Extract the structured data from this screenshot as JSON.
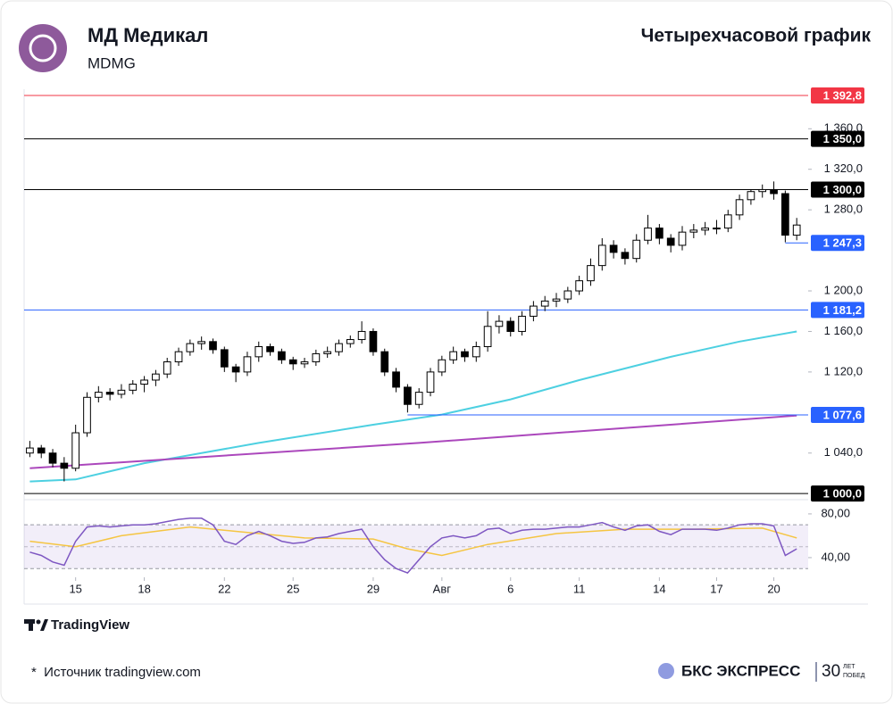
{
  "header": {
    "title": "МД Медикал",
    "ticker": "MDMG",
    "subtitle": "Четырехчасовой график"
  },
  "chart_data": {
    "type": "candlestick",
    "candles": [
      [
        1040,
        1052,
        1036,
        1045
      ],
      [
        1045,
        1048,
        1035,
        1040
      ],
      [
        1040,
        1044,
        1026,
        1030
      ],
      [
        1030,
        1036,
        1012,
        1025
      ],
      [
        1025,
        1068,
        1022,
        1060
      ],
      [
        1060,
        1100,
        1056,
        1095
      ],
      [
        1095,
        1106,
        1090,
        1100
      ],
      [
        1100,
        1104,
        1092,
        1098
      ],
      [
        1098,
        1108,
        1094,
        1102
      ],
      [
        1102,
        1112,
        1098,
        1108
      ],
      [
        1108,
        1116,
        1100,
        1112
      ],
      [
        1112,
        1122,
        1106,
        1118
      ],
      [
        1118,
        1134,
        1114,
        1130
      ],
      [
        1130,
        1144,
        1126,
        1140
      ],
      [
        1140,
        1152,
        1136,
        1148
      ],
      [
        1148,
        1155,
        1142,
        1150
      ],
      [
        1150,
        1153,
        1138,
        1142
      ],
      [
        1142,
        1145,
        1120,
        1125
      ],
      [
        1125,
        1128,
        1110,
        1120
      ],
      [
        1120,
        1140,
        1116,
        1135
      ],
      [
        1135,
        1150,
        1130,
        1145
      ],
      [
        1145,
        1148,
        1136,
        1140
      ],
      [
        1140,
        1143,
        1128,
        1132
      ],
      [
        1132,
        1135,
        1122,
        1128
      ],
      [
        1128,
        1134,
        1124,
        1130
      ],
      [
        1130,
        1142,
        1126,
        1138
      ],
      [
        1138,
        1145,
        1134,
        1140
      ],
      [
        1140,
        1152,
        1136,
        1148
      ],
      [
        1148,
        1156,
        1144,
        1152
      ],
      [
        1152,
        1170,
        1148,
        1160
      ],
      [
        1160,
        1163,
        1136,
        1140
      ],
      [
        1140,
        1143,
        1116,
        1120
      ],
      [
        1120,
        1124,
        1100,
        1105
      ],
      [
        1105,
        1108,
        1080,
        1088
      ],
      [
        1088,
        1104,
        1084,
        1100
      ],
      [
        1100,
        1124,
        1096,
        1120
      ],
      [
        1120,
        1136,
        1116,
        1132
      ],
      [
        1132,
        1145,
        1128,
        1140
      ],
      [
        1140,
        1143,
        1130,
        1135
      ],
      [
        1135,
        1150,
        1130,
        1145
      ],
      [
        1145,
        1180,
        1140,
        1165
      ],
      [
        1165,
        1176,
        1158,
        1170
      ],
      [
        1170,
        1174,
        1155,
        1160
      ],
      [
        1160,
        1180,
        1156,
        1175
      ],
      [
        1175,
        1190,
        1170,
        1185
      ],
      [
        1185,
        1195,
        1180,
        1190
      ],
      [
        1190,
        1198,
        1184,
        1192
      ],
      [
        1192,
        1204,
        1188,
        1200
      ],
      [
        1200,
        1215,
        1196,
        1210
      ],
      [
        1210,
        1232,
        1205,
        1225
      ],
      [
        1225,
        1252,
        1220,
        1245
      ],
      [
        1245,
        1250,
        1232,
        1238
      ],
      [
        1238,
        1242,
        1226,
        1232
      ],
      [
        1232,
        1256,
        1228,
        1250
      ],
      [
        1250,
        1275,
        1246,
        1262
      ],
      [
        1262,
        1266,
        1246,
        1252
      ],
      [
        1252,
        1256,
        1238,
        1245
      ],
      [
        1245,
        1264,
        1240,
        1258
      ],
      [
        1258,
        1266,
        1252,
        1260
      ],
      [
        1260,
        1268,
        1255,
        1262
      ],
      [
        1262,
        1270,
        1256,
        1262
      ],
      [
        1262,
        1280,
        1258,
        1275
      ],
      [
        1275,
        1295,
        1270,
        1290
      ],
      [
        1290,
        1300,
        1285,
        1298
      ],
      [
        1298,
        1305,
        1292,
        1300
      ],
      [
        1300,
        1308,
        1290,
        1296
      ],
      [
        1296,
        1299,
        1248,
        1255
      ],
      [
        1255,
        1272,
        1250,
        1265
      ]
    ],
    "up_color": "#ffffff",
    "down_color": "#000000",
    "xlim": [
      -0.5,
      68
    ],
    "xticks": [
      {
        "value": 4,
        "label": "15"
      },
      {
        "value": 10,
        "label": "18"
      },
      {
        "value": 17,
        "label": "22"
      },
      {
        "value": 23,
        "label": "25"
      },
      {
        "value": 30,
        "label": "29"
      },
      {
        "value": 36,
        "label": "Авг"
      },
      {
        "value": 42,
        "label": "6"
      },
      {
        "value": 48,
        "label": "11"
      },
      {
        "value": 55,
        "label": "14"
      },
      {
        "value": 60,
        "label": "17"
      },
      {
        "value": 65,
        "label": "20"
      }
    ],
    "ylim": [
      994,
      1399
    ],
    "yticks": [
      {
        "value": 1040,
        "label": "1 040,0"
      },
      {
        "value": 1120,
        "label": "1 120,0"
      },
      {
        "value": 1160,
        "label": "1 160,0"
      },
      {
        "value": 1200,
        "label": "1 200,0"
      },
      {
        "value": 1280,
        "label": "1 280,0"
      },
      {
        "value": 1320,
        "label": "1 320,0"
      },
      {
        "value": 1360,
        "label": "1 360,0"
      }
    ],
    "levels": [
      {
        "value": 1392.8,
        "label": "1 392,8",
        "color": "#f23645"
      },
      {
        "value": 1350.0,
        "label": "1 350,0",
        "color": "#000000"
      },
      {
        "value": 1300.0,
        "label": "1 300,0",
        "color": "#000000"
      },
      {
        "value": 1247.3,
        "label": "1 247,3",
        "color": "#2962ff",
        "start": 66
      },
      {
        "value": 1181.2,
        "label": "1 181,2",
        "color": "#2962ff"
      },
      {
        "value": 1077.6,
        "label": "1 077,6",
        "color": "#2962ff",
        "start": 33
      },
      {
        "value": 1000.0,
        "label": "1 000,0",
        "color": "#000000"
      }
    ],
    "moving_averages": [
      {
        "color": "#4dd0e1",
        "x": [
          0,
          4,
          10,
          20,
          30,
          36,
          42,
          48,
          56,
          62,
          67
        ],
        "values": [
          1012,
          1014,
          1030,
          1050,
          1068,
          1078,
          1093,
          1112,
          1135,
          1150,
          1160
        ]
      },
      {
        "color": "#ab47bc",
        "x": [
          0,
          34,
          67
        ],
        "values": [
          1025,
          1050,
          1077
        ]
      }
    ],
    "rsi": {
      "color": "#7e57c2",
      "values": [
        45,
        42,
        36,
        33,
        55,
        68,
        69,
        68,
        69,
        70,
        70,
        71,
        73,
        75,
        76,
        76,
        70,
        55,
        52,
        60,
        64,
        60,
        55,
        53,
        54,
        58,
        59,
        62,
        64,
        66,
        50,
        38,
        30,
        26,
        38,
        50,
        58,
        60,
        58,
        60,
        66,
        67,
        62,
        65,
        66,
        66,
        67,
        68,
        68,
        70,
        72,
        68,
        65,
        69,
        70,
        64,
        61,
        66,
        66,
        66,
        65,
        67,
        70,
        71,
        71,
        69,
        42,
        48
      ],
      "ma": {
        "color": "#f5c542",
        "x": [
          0,
          4,
          8,
          14,
          18,
          24,
          30,
          33,
          36,
          40,
          46,
          52,
          58,
          64,
          67
        ],
        "values": [
          55,
          50,
          60,
          68,
          64,
          58,
          57,
          48,
          42,
          52,
          62,
          66,
          66,
          67,
          58
        ]
      },
      "ylim": [
        22,
        93
      ],
      "yticks": [
        {
          "value": 80,
          "label": "80,00"
        },
        {
          "value": 40,
          "label": "40,00"
        }
      ],
      "bands": [
        30,
        70
      ],
      "mid": 50
    }
  },
  "footer": {
    "brand": "TradingView",
    "source": "*  Источник tradingview.com",
    "logo": "БКС ЭКСПРЕСС",
    "anniv_num": "30",
    "anniv_1": "ЛЕТ",
    "anniv_2": "ПОБЕД"
  }
}
